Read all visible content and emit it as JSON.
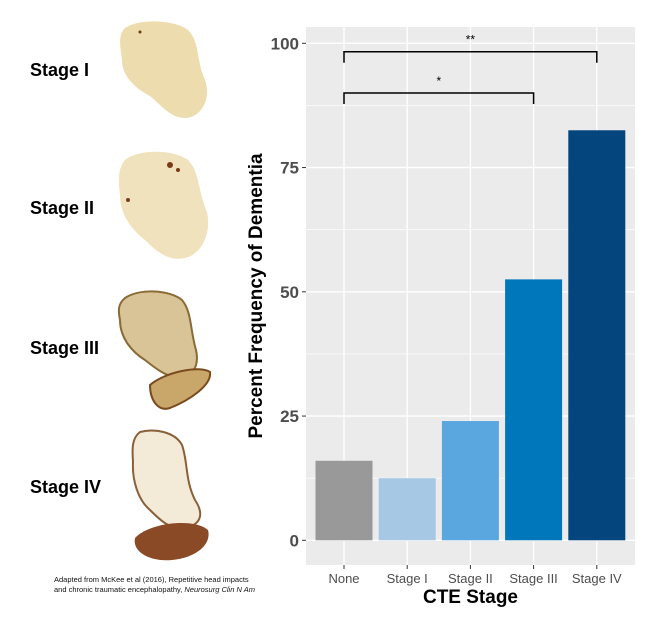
{
  "figure": {
    "stage_labels": [
      "Stage I",
      "Stage II",
      "Stage III",
      "Stage IV"
    ],
    "caption_line1": "Adapted from McKee et al (2016), Repetitive head impacts",
    "caption_line2": "and chronic traumatic encephalopathy,",
    "caption_journal": "Neurosurg Clin N Am"
  },
  "chart_data": {
    "type": "bar",
    "categories": [
      "None",
      "Stage I",
      "Stage II",
      "Stage III",
      "Stage IV"
    ],
    "values": [
      16.0,
      12.5,
      24.0,
      52.5,
      82.5
    ],
    "colors": [
      "#999999",
      "#a6c8e4",
      "#5aa7e0",
      "#0077bb",
      "#03457c"
    ],
    "xlabel": "CTE Stage",
    "ylabel": "Percent Frequency of Dementia",
    "ylim": [
      -5,
      103
    ],
    "yticks": [
      0,
      25,
      50,
      75,
      100
    ],
    "ytick_labels": [
      "0",
      "25",
      "50",
      "75",
      "100"
    ],
    "grid": true,
    "background": "#ebebeb",
    "significance": [
      {
        "from": "None",
        "to": "Stage III",
        "label": "*",
        "y": 90
      },
      {
        "from": "None",
        "to": "Stage IV",
        "label": "**",
        "y": 98.3
      }
    ]
  }
}
